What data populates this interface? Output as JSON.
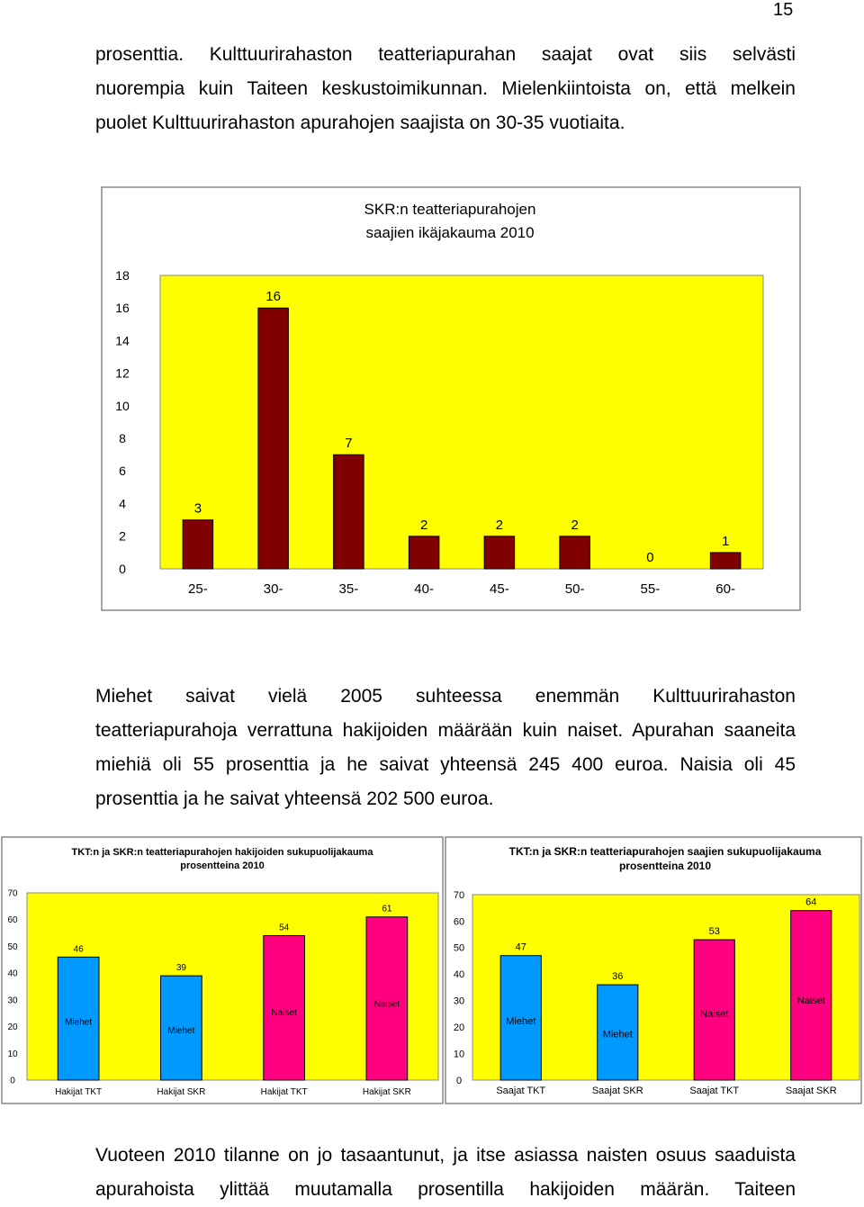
{
  "page_number": "15",
  "paragraph_1": {
    "lines": [
      "prosenttia. Kulttuurirahaston teatteriapurahan saajat ovat siis selvästi",
      "nuorempia kuin Taiteen keskustoimikunnan. Mielenkiintoista on, että melkein",
      "puolet Kulttuurirahaston apurahojen saajista on 30-35 vuotiaita."
    ]
  },
  "paragraph_2": {
    "lines": [
      "Miehet saivat vielä 2005 suhteessa enemmän Kulttuurirahaston",
      "teatteriapurahoja verrattuna hakijoiden määrään kuin naiset. Apurahan saaneita",
      "miehiä oli 55 prosenttia ja he saivat yhteensä 245 400 euroa. Naisia oli 45",
      "prosenttia ja he saivat yhteensä 202 500 euroa."
    ]
  },
  "paragraph_3": {
    "lines": [
      "Vuoteen 2010 tilanne on jo tasaantunut, ja itse asiassa naisten osuus saaduista",
      "apurahoista ylittää muutamalla prosentilla hakijoiden määrän. Taiteen"
    ]
  },
  "chart_data": [
    {
      "type": "bar",
      "title": "SKR:n teatteriapurahojen saajien ikäjakauma 2010",
      "title_lines": [
        "SKR:n teatteriapurahojen",
        "saajien ikäjakauma 2010"
      ],
      "categories": [
        "25-",
        "30-",
        "35-",
        "40-",
        "45-",
        "50-",
        "55-",
        "60-"
      ],
      "values": [
        3,
        16,
        7,
        2,
        2,
        2,
        0,
        1
      ],
      "ylim": [
        0,
        18
      ],
      "yticks": [
        0,
        2,
        4,
        6,
        8,
        10,
        12,
        14,
        16,
        18
      ],
      "grid": false,
      "legend": "none",
      "colors": {
        "plot_background": "#ffff00",
        "bar": "#800000"
      }
    },
    {
      "type": "bar",
      "title": "TKT:n ja SKR:n teatteriapurahojen hakijoiden sukupuolijakauma prosentteina 2010",
      "title_lines": [
        "TKT:n ja SKR:n teatteriapurahojen hakijoiden sukupuolijakauma",
        "prosentteina 2010"
      ],
      "categories": [
        "Hakijat TKT",
        "Hakijat SKR",
        "Hakijat TKT",
        "Hakijat SKR"
      ],
      "values": [
        46,
        39,
        54,
        61
      ],
      "bar_labels": [
        "Miehet",
        "Miehet",
        "Naiset",
        "Naiset"
      ],
      "bar_colors": [
        "#0099ff",
        "#0099ff",
        "#ff0080",
        "#ff0080"
      ],
      "ylim": [
        0,
        70
      ],
      "yticks": [
        0,
        10,
        20,
        30,
        40,
        50,
        60,
        70
      ],
      "grid": false,
      "legend": "none",
      "colors": {
        "plot_background": "#ffff00"
      }
    },
    {
      "type": "bar",
      "title": "TKT:n ja SKR:n teatteriapurahojen saajien sukupuolijakauma prosentteina 2010",
      "title_lines": [
        "TKT:n ja SKR:n teatteriapurahojen saajien sukupuolijakauma",
        "prosentteina 2010"
      ],
      "categories": [
        "Saajat TKT",
        "Saajat SKR",
        "Saajat TKT",
        "Saajat SKR"
      ],
      "values": [
        47,
        36,
        53,
        64
      ],
      "bar_labels": [
        "Miehet",
        "Miehet",
        "Naiset",
        "Naiset"
      ],
      "bar_colors": [
        "#0099ff",
        "#0099ff",
        "#ff0080",
        "#ff0080"
      ],
      "ylim": [
        0,
        70
      ],
      "yticks": [
        0,
        10,
        20,
        30,
        40,
        50,
        60,
        70
      ],
      "grid": false,
      "legend": "none",
      "colors": {
        "plot_background": "#ffff00"
      }
    }
  ]
}
